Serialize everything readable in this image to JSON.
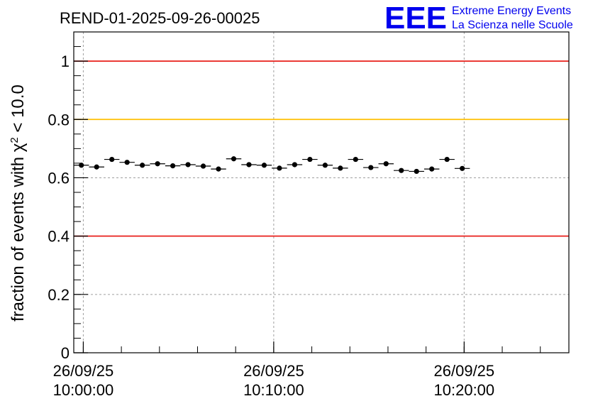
{
  "header": {
    "title": "REND-01-2025-09-26-00025",
    "logo_text": "EEE",
    "logo_line1": "Extreme Energy Events",
    "logo_line2": "La Scienza nelle Scuole"
  },
  "chart_data": {
    "type": "scatter",
    "title": "REND-01-2025-09-26-00025",
    "ylabel": "fraction of events with χ² < 10.0",
    "xlabel": "",
    "x_axis_type": "time",
    "xlim": [
      "2025-09-26 09:59:30",
      "2025-09-26 10:25:30"
    ],
    "ylim": [
      0,
      1.1
    ],
    "yticks": [
      {
        "value": 0,
        "label": "0"
      },
      {
        "value": 0.2,
        "label": "0.2"
      },
      {
        "value": 0.4,
        "label": "0.4"
      },
      {
        "value": 0.6,
        "label": "0.6"
      },
      {
        "value": 0.8,
        "label": "0.8"
      },
      {
        "value": 1,
        "label": "1"
      }
    ],
    "xticks": [
      {
        "value": "2025-09-26 10:00:00",
        "date": "26/09/25",
        "time": "10:00:00"
      },
      {
        "value": "2025-09-26 10:10:00",
        "date": "26/09/25",
        "time": "10:10:00"
      },
      {
        "value": "2025-09-26 10:20:00",
        "date": "26/09/25",
        "time": "10:20:00"
      }
    ],
    "grid": true,
    "reference_lines": [
      {
        "y": 1.0,
        "color": "#e8201c"
      },
      {
        "y": 0.8,
        "color": "#ffbf00"
      },
      {
        "y": 0.4,
        "color": "#e8201c"
      }
    ],
    "marker_color": "#000000",
    "bin_width_minutes": 0.8,
    "bin_start": "2025-09-26 09:59:30",
    "y": [
      0.643,
      0.637,
      0.663,
      0.653,
      0.643,
      0.648,
      0.641,
      0.645,
      0.64,
      0.63,
      0.665,
      0.645,
      0.643,
      0.633,
      0.645,
      0.663,
      0.643,
      0.633,
      0.663,
      0.635,
      0.648,
      0.625,
      0.622,
      0.63,
      0.663,
      0.632
    ],
    "y_error": 0.006
  }
}
